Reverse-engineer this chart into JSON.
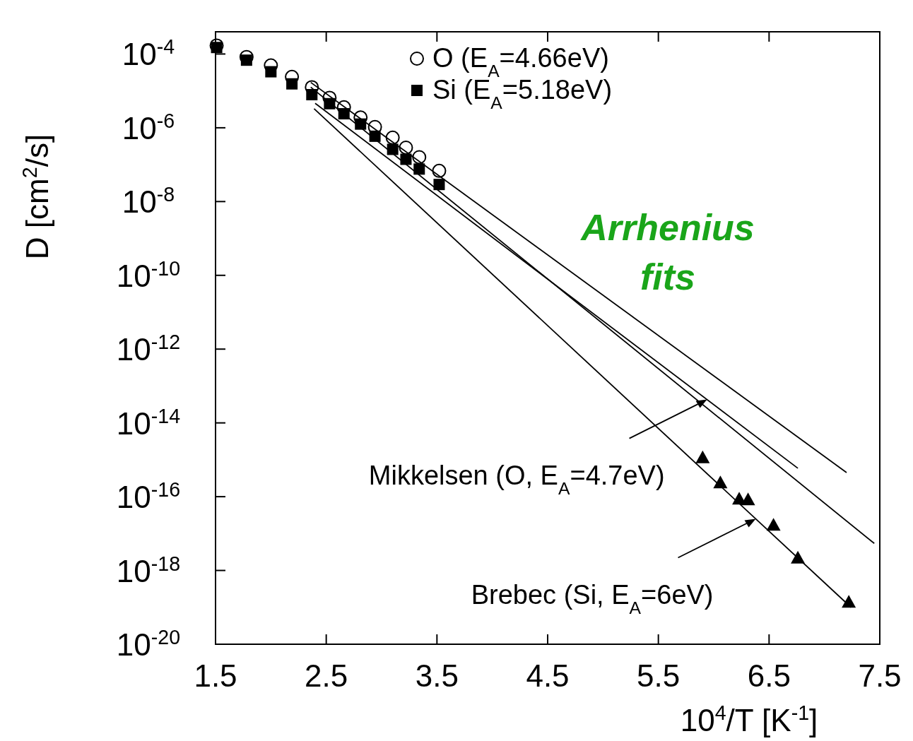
{
  "chart_data": {
    "type": "scatter",
    "xlabel": "10$^{4}$/T [K$^{-1}$]",
    "ylabel": "D [cm$^{2}$/s]",
    "log": "y",
    "xlim": [
      1.5,
      7.5
    ],
    "ylim": [
      1e-20,
      0.0004
    ],
    "xticks": [
      1.5,
      2.5,
      3.5,
      4.5,
      5.5,
      6.5,
      7.5
    ],
    "yticks": [
      {
        "value": 0.0001,
        "label": "10$^{-4}$"
      },
      {
        "value": 1e-06,
        "label": "10$^{-6}$"
      },
      {
        "value": 1e-08,
        "label": "10$^{-8}$"
      },
      {
        "value": 1e-10,
        "label": "10$^{-10}$"
      },
      {
        "value": 1e-12,
        "label": "10$^{-12}$"
      },
      {
        "value": 1e-14,
        "label": "10$^{-14}$"
      },
      {
        "value": 1e-16,
        "label": "10$^{-16}$"
      },
      {
        "value": 1e-18,
        "label": "10$^{-18}$"
      },
      {
        "value": 1e-20,
        "label": "10$^{-20}$"
      }
    ],
    "legend": "top",
    "grid": false,
    "series": [
      {
        "name": "O (E$_{A}$=4.66eV)",
        "marker": "circle",
        "color": "#000000",
        "x": [
          1.51,
          1.78,
          2.0,
          2.19,
          2.37,
          2.53,
          2.66,
          2.81,
          2.94,
          3.1,
          3.22,
          3.34,
          3.52
        ],
        "values": [
          0.00017,
          8.3e-05,
          4.9e-05,
          2.4e-05,
          1.26e-05,
          6.5e-06,
          3.6e-06,
          1.9e-06,
          1.05e-06,
          5.4e-07,
          2.9e-07,
          1.6e-07,
          6.8e-08
        ]
      },
      {
        "name": "Si (E$_{A}$=5.18eV)",
        "marker": "square",
        "color": "#000000",
        "x": [
          1.51,
          1.78,
          2.0,
          2.19,
          2.37,
          2.53,
          2.66,
          2.81,
          2.94,
          3.1,
          3.22,
          3.34,
          3.52
        ],
        "values": [
          0.00015,
          6.8e-05,
          3.3e-05,
          1.55e-05,
          7.9e-06,
          4.5e-06,
          2.4e-06,
          1.26e-06,
          5.9e-07,
          2.6e-07,
          1.4e-07,
          7.6e-08,
          2.9e-08
        ]
      },
      {
        "marker": "triangle",
        "color": "#000000",
        "x": [
          5.9,
          6.06,
          6.23,
          6.31,
          6.54,
          6.76,
          7.22
        ],
        "values": [
          1.15e-15,
          2.4e-16,
          8.7e-17,
          8.3e-17,
          1.7e-17,
          2.2e-18,
          1.4e-19
        ]
      },
      {
        "type": "line",
        "color": "#000000",
        "x": [
          2.36,
          7.2
        ],
        "values": [
          1.7e-05,
          4.5e-16
        ]
      },
      {
        "type": "line",
        "color": "#000000",
        "x": [
          2.36,
          7.45
        ],
        "values": [
          1.26e-05,
          5.4e-18
        ]
      },
      {
        "type": "line",
        "color": "#000000",
        "x": [
          2.4,
          6.76
        ],
        "values": [
          4.6e-06,
          5.9e-16
        ]
      },
      {
        "type": "line",
        "color": "#000000",
        "x": [
          2.39,
          7.24
        ],
        "values": [
          3.3e-06,
          1e-19
        ]
      }
    ],
    "annotations": [
      {
        "text": "Mikkelsen (O, E$_{A}$=4.7eV)",
        "x": 5.94,
        "y": 4.3e-14
      },
      {
        "text": "Brebec (Si, E$_{A}$=6eV)",
        "x": 6.38,
        "y": 2.5e-17
      },
      "Arrhenius fits"
    ]
  }
}
